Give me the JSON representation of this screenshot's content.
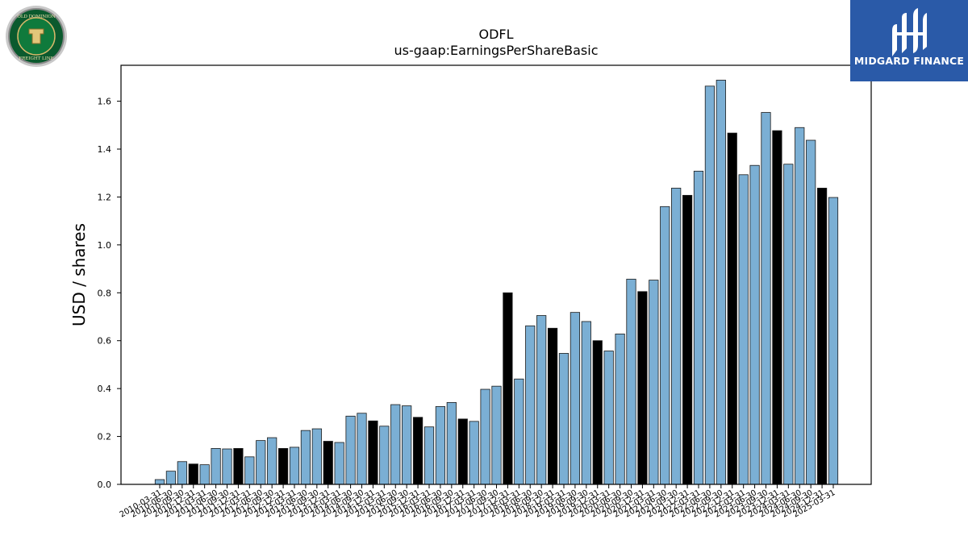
{
  "logos": {
    "left": {
      "icon": "old-dominion-seal-logo",
      "text_top": "OLD DOMINION",
      "text_bottom": "FREIGHT LINE"
    },
    "right": {
      "icon": "midgard-finance-logo",
      "text": "MIDGARD FINANCE",
      "bg_color": "#2a5aa8"
    }
  },
  "chart_data": {
    "type": "bar",
    "title": "ODFL",
    "subtitle": "us-gaap:EarningsPerShareBasic",
    "xlabel": "",
    "ylabel": "USD / shares",
    "ylim": [
      0,
      1.75
    ],
    "yticks": [
      0.0,
      0.2,
      0.4,
      0.6,
      0.8,
      1.0,
      1.2,
      1.4,
      1.6
    ],
    "grid": false,
    "colors": {
      "quarter": "#7bafd4",
      "annual": "#000000",
      "edge": "#1a1a1a"
    },
    "categories": [
      "2010-03-31",
      "2010-06-30",
      "2010-09-30",
      "2010-12-31",
      "2011-03-31",
      "2011-06-30",
      "2011-09-30",
      "2011-12-31",
      "2012-03-31",
      "2012-06-30",
      "2012-09-30",
      "2012-12-31",
      "2013-03-31",
      "2013-06-30",
      "2013-09-30",
      "2013-12-31",
      "2014-03-31",
      "2014-06-30",
      "2014-09-30",
      "2014-12-31",
      "2015-03-31",
      "2015-06-30",
      "2015-09-30",
      "2015-12-31",
      "2016-03-31",
      "2016-06-30",
      "2016-09-30",
      "2016-12-31",
      "2017-03-31",
      "2017-06-30",
      "2017-09-30",
      "2017-12-31",
      "2018-03-31",
      "2018-06-30",
      "2018-09-30",
      "2018-12-31",
      "2019-03-31",
      "2019-06-30",
      "2019-09-30",
      "2019-12-31",
      "2020-03-31",
      "2020-06-30",
      "2020-09-30",
      "2020-12-31",
      "2021-03-31",
      "2021-06-30",
      "2021-09-30",
      "2021-12-31",
      "2022-03-31",
      "2022-06-30",
      "2022-09-30",
      "2022-12-31",
      "2023-03-31",
      "2023-06-30",
      "2023-09-30",
      "2023-12-31",
      "2024-03-31",
      "2024-06-30",
      "2024-09-30",
      "2024-12-31",
      "2025-03-31"
    ],
    "values": [
      0.02,
      0.055,
      0.095,
      0.085,
      0.082,
      0.15,
      0.148,
      0.15,
      0.115,
      0.183,
      0.195,
      0.15,
      0.155,
      0.225,
      0.232,
      0.18,
      0.175,
      0.285,
      0.297,
      0.265,
      0.243,
      0.333,
      0.328,
      0.28,
      0.24,
      0.325,
      0.342,
      0.273,
      0.263,
      0.397,
      0.41,
      0.8,
      0.44,
      0.662,
      0.705,
      0.652,
      0.547,
      0.718,
      0.68,
      0.6,
      0.557,
      0.628,
      0.857,
      0.805,
      0.853,
      1.16,
      1.237,
      1.207,
      1.308,
      1.663,
      1.688,
      1.467,
      1.293,
      1.332,
      1.553,
      1.477,
      1.337,
      1.49,
      1.437,
      1.237,
      1.198
    ],
    "annual_flags": [
      0,
      0,
      0,
      1,
      0,
      0,
      0,
      1,
      0,
      0,
      0,
      1,
      0,
      0,
      0,
      1,
      0,
      0,
      0,
      1,
      0,
      0,
      0,
      1,
      0,
      0,
      0,
      1,
      0,
      0,
      0,
      1,
      0,
      0,
      0,
      1,
      0,
      0,
      0,
      1,
      0,
      0,
      0,
      1,
      0,
      0,
      0,
      1,
      0,
      0,
      0,
      1,
      0,
      0,
      0,
      1,
      0,
      0,
      0,
      1,
      0
    ]
  }
}
